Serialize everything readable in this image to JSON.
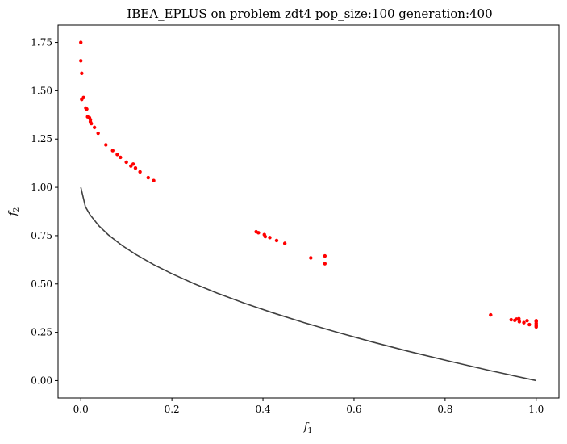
{
  "chart_data": {
    "type": "scatter",
    "title": "IBEA_EPLUS on problem zdt4 pop_size:100 generation:400",
    "xlabel": "f",
    "xlabel_sub": "1",
    "ylabel": "f",
    "ylabel_sub": "2",
    "xlim": [
      -0.05,
      1.05
    ],
    "ylim": [
      -0.09,
      1.84
    ],
    "xticks": [
      0.0,
      0.2,
      0.4,
      0.6,
      0.8,
      1.0
    ],
    "xtick_labels": [
      "0.0",
      "0.2",
      "0.4",
      "0.6",
      "0.8",
      "1.0"
    ],
    "yticks": [
      0.0,
      0.25,
      0.5,
      0.75,
      1.0,
      1.25,
      1.5,
      1.75
    ],
    "ytick_labels": [
      "0.00",
      "0.25",
      "0.50",
      "0.75",
      "1.00",
      "1.25",
      "1.50",
      "1.75"
    ],
    "grid": false,
    "colors": {
      "points": "#ff0000",
      "front": "#404040"
    },
    "reference_front": {
      "type": "line",
      "function": "1 - sqrt(f1)",
      "x": [
        0.0,
        0.01,
        0.02,
        0.04,
        0.06,
        0.09,
        0.12,
        0.16,
        0.2,
        0.25,
        0.3,
        0.36,
        0.42,
        0.49,
        0.56,
        0.64,
        0.72,
        0.81,
        0.9,
        1.0
      ],
      "y": [
        1.0,
        0.9,
        0.859,
        0.8,
        0.755,
        0.7,
        0.654,
        0.6,
        0.553,
        0.5,
        0.452,
        0.4,
        0.352,
        0.3,
        0.252,
        0.2,
        0.151,
        0.1,
        0.051,
        0.0
      ]
    },
    "series": [
      {
        "type": "scatter",
        "points": [
          [
            0.0,
            1.75
          ],
          [
            0.0,
            1.655
          ],
          [
            0.002,
            1.59
          ],
          [
            0.002,
            1.455
          ],
          [
            0.006,
            1.465
          ],
          [
            0.011,
            1.41
          ],
          [
            0.013,
            1.405
          ],
          [
            0.015,
            1.365
          ],
          [
            0.019,
            1.36
          ],
          [
            0.021,
            1.35
          ],
          [
            0.021,
            1.34
          ],
          [
            0.023,
            1.33
          ],
          [
            0.03,
            1.31
          ],
          [
            0.038,
            1.28
          ],
          [
            0.055,
            1.22
          ],
          [
            0.07,
            1.19
          ],
          [
            0.08,
            1.17
          ],
          [
            0.087,
            1.155
          ],
          [
            0.1,
            1.13
          ],
          [
            0.11,
            1.11
          ],
          [
            0.115,
            1.12
          ],
          [
            0.12,
            1.1
          ],
          [
            0.13,
            1.08
          ],
          [
            0.148,
            1.05
          ],
          [
            0.16,
            1.035
          ],
          [
            0.385,
            0.77
          ],
          [
            0.39,
            0.765
          ],
          [
            0.403,
            0.755
          ],
          [
            0.405,
            0.745
          ],
          [
            0.415,
            0.74
          ],
          [
            0.43,
            0.725
          ],
          [
            0.448,
            0.71
          ],
          [
            0.505,
            0.635
          ],
          [
            0.536,
            0.645
          ],
          [
            0.536,
            0.605
          ],
          [
            0.9,
            0.34
          ],
          [
            0.945,
            0.315
          ],
          [
            0.953,
            0.312
          ],
          [
            0.957,
            0.318
          ],
          [
            0.962,
            0.32
          ],
          [
            0.963,
            0.305
          ],
          [
            0.973,
            0.3
          ],
          [
            0.98,
            0.31
          ],
          [
            0.985,
            0.29
          ],
          [
            1.0,
            0.305
          ],
          [
            1.0,
            0.295
          ],
          [
            1.0,
            0.285
          ],
          [
            1.0,
            0.278
          ],
          [
            1.0,
            0.31
          ]
        ]
      }
    ]
  }
}
